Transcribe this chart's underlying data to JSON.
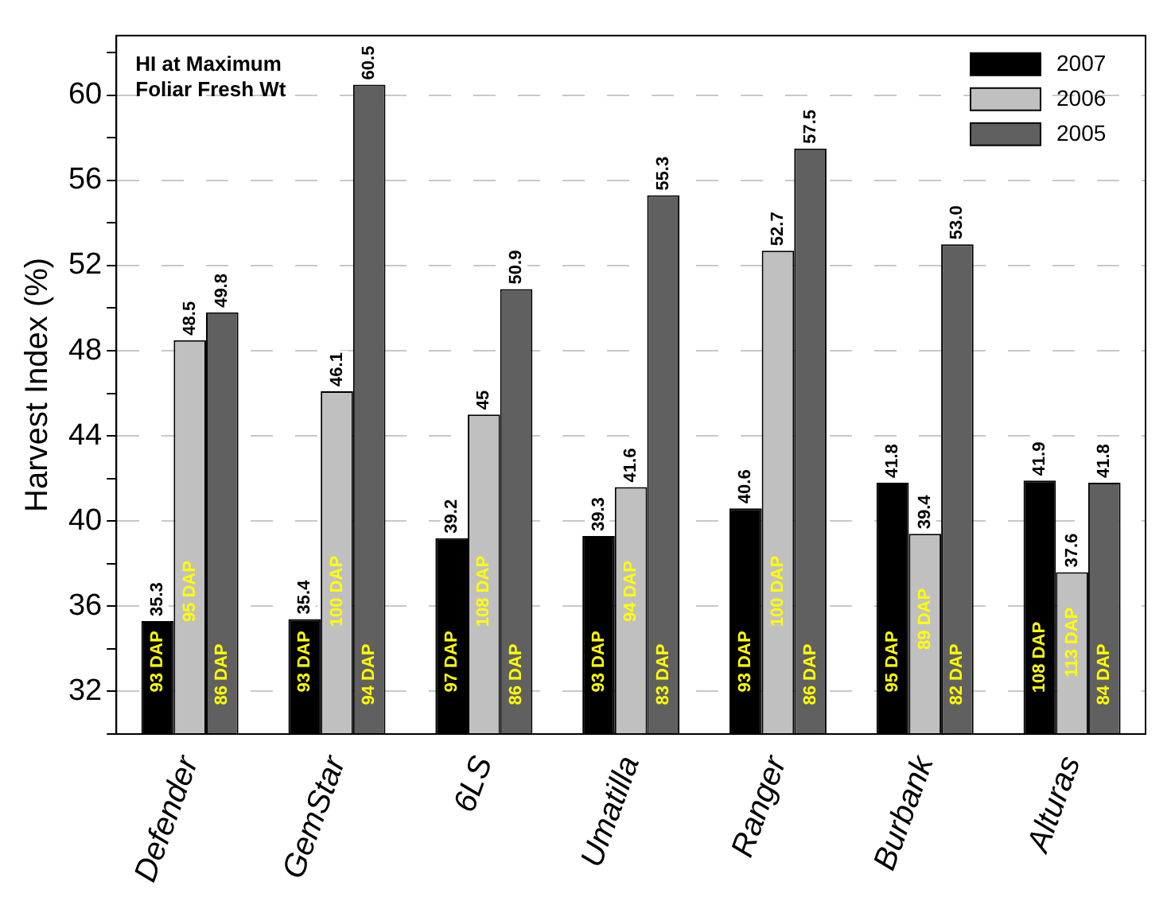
{
  "chart_data": {
    "type": "bar",
    "title": "HI at Maximum\nFoliar Fresh Wt",
    "ylabel": "Harvest Index (%)",
    "categories": [
      "Defender",
      "GemStar",
      "6LS",
      "Umatilla",
      "Ranger",
      "Burbank",
      "Alturas"
    ],
    "series": [
      {
        "name": "2007",
        "color": "#000000",
        "values": [
          35.3,
          35.4,
          39.2,
          39.3,
          40.6,
          41.8,
          41.9
        ],
        "value_labels": [
          "35.3",
          "35.4",
          "39.2",
          "39.3",
          "40.6",
          "41.8",
          "41.9"
        ]
      },
      {
        "name": "2006",
        "color": "#c0c0c0",
        "values": [
          48.5,
          46.1,
          45,
          41.6,
          52.7,
          39.4,
          37.6
        ],
        "value_labels": [
          "48.5",
          "46.1",
          "45",
          "41.6",
          "52.7",
          "39.4",
          "37.6"
        ]
      },
      {
        "name": "2005",
        "color": "#606060",
        "values": [
          49.8,
          60.5,
          50.9,
          55.3,
          57.5,
          53.0,
          41.8
        ],
        "value_labels": [
          "49.8",
          "60.5",
          "50.9",
          "55.3",
          "57.5",
          "53.0",
          "41.8"
        ]
      }
    ],
    "annotations": [
      {
        "text": "93 DAP",
        "x": "Defender",
        "y": 33.4
      },
      {
        "text": "95 DAP",
        "x": "Defender",
        "y": 36.7
      },
      {
        "text": "86 DAP",
        "x": "Defender",
        "y": 32.8
      },
      {
        "text": "93 DAP",
        "x": "GemStar",
        "y": 33.4
      },
      {
        "text": "100 DAP",
        "x": "GemStar",
        "y": 36.7
      },
      {
        "text": "94 DAP",
        "x": "GemStar",
        "y": 32.8
      },
      {
        "text": "97 DAP",
        "x": "6LS",
        "y": 33.4
      },
      {
        "text": "108 DAP",
        "x": "6LS",
        "y": 36.7
      },
      {
        "text": "86 DAP",
        "x": "6LS",
        "y": 32.8
      },
      {
        "text": "93 DAP",
        "x": "Umatilla",
        "y": 33.4
      },
      {
        "text": "94 DAP",
        "x": "Umatilla",
        "y": 36.7
      },
      {
        "text": "83 DAP",
        "x": "Umatilla",
        "y": 32.8
      },
      {
        "text": "93 DAP",
        "x": "Ranger",
        "y": 33.4
      },
      {
        "text": "100 DAP",
        "x": "Ranger",
        "y": 36.7
      },
      {
        "text": "86 DAP",
        "x": "Ranger",
        "y": 32.8
      },
      {
        "text": "95 DAP",
        "x": "Burbank",
        "y": 33.4
      },
      {
        "text": "89 DAP",
        "x": "Burbank",
        "y": 35.4
      },
      {
        "text": "82 DAP",
        "x": "Burbank",
        "y": 32.8
      },
      {
        "text": "108 DAP",
        "x": "Alturas",
        "y": 33.6
      },
      {
        "text": "113 DAP",
        "x": "Alturas",
        "y": 34.3
      },
      {
        "text": "84 DAP",
        "x": "Alturas",
        "y": 32.8
      }
    ],
    "ylim": [
      30,
      62.8
    ],
    "yticks": [
      32,
      36,
      40,
      44,
      48,
      52,
      56,
      60
    ],
    "grid": "y",
    "legend": "top right"
  }
}
